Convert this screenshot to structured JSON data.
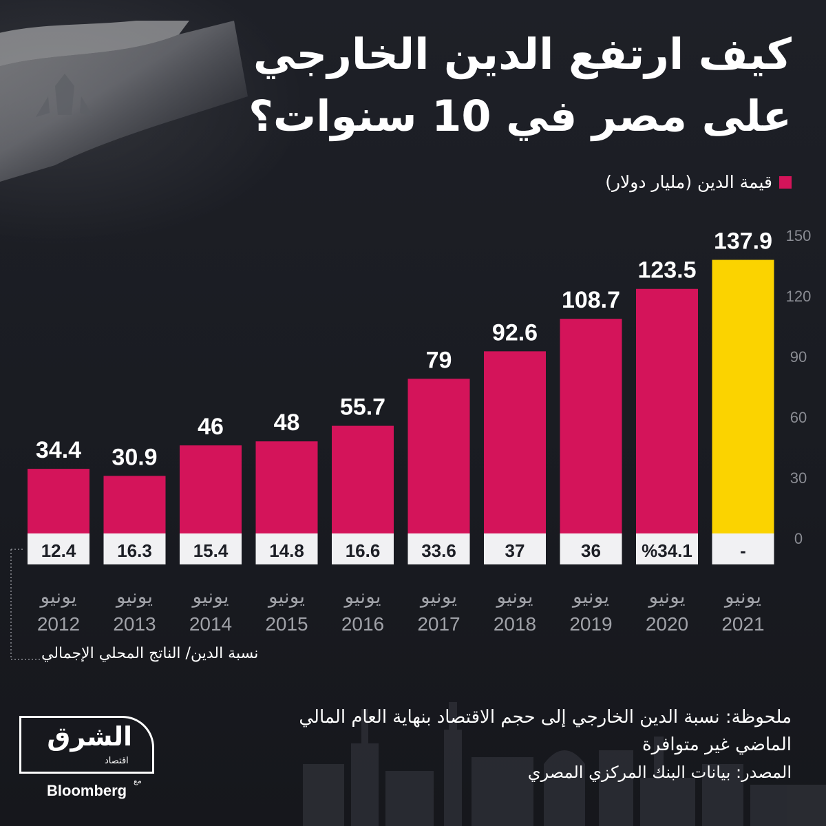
{
  "title_line1": "كيف ارتفع الدين الخارجي",
  "title_line2": "على مصر في 10 سنوات؟",
  "legend_label": "قيمة الدين (مليار دولار)",
  "ratio_caption": "نسبة الدين/ الناتج المحلي الإجمالي",
  "note_line1": "ملحوظة: نسبة الدين الخارجي إلى حجم الاقتصاد بنهاية العام المالي",
  "note_line2": "الماضي غير متوافرة",
  "source": "المصدر: بيانات البنك المركزي المصري",
  "logo": {
    "main": "الشرق",
    "sub": "اقتصاد",
    "with": "مع",
    "partner": "Bloomberg"
  },
  "colors": {
    "bar": "#d4145a",
    "highlight": "#fbd300",
    "background": "#1c1e25",
    "ratio_box": "#f1f1f3"
  },
  "chart_data": {
    "type": "bar",
    "categories": [
      [
        "يونيو",
        "2012"
      ],
      [
        "يونيو",
        "2013"
      ],
      [
        "يونيو",
        "2014"
      ],
      [
        "يونيو",
        "2015"
      ],
      [
        "يونيو",
        "2016"
      ],
      [
        "يونيو",
        "2017"
      ],
      [
        "يونيو",
        "2018"
      ],
      [
        "يونيو",
        "2019"
      ],
      [
        "يونيو",
        "2020"
      ],
      [
        "يونيو",
        "2021"
      ]
    ],
    "values": [
      34.4,
      30.9,
      46,
      48,
      55.7,
      79,
      92.6,
      108.7,
      123.5,
      137.9
    ],
    "value_labels": [
      "34.4",
      "30.9",
      "46",
      "48",
      "55.7",
      "79",
      "92.6",
      "108.7",
      "123.5",
      "137.9"
    ],
    "ratio_labels": [
      "12.4",
      "16.3",
      "15.4",
      "14.8",
      "16.6",
      "33.6",
      "37",
      "36",
      "%34.1",
      "-"
    ],
    "highlight_index": 9,
    "ylim": [
      0,
      150
    ],
    "yticks": [
      0,
      30,
      60,
      90,
      120,
      150
    ],
    "axis_side": "right",
    "grid": false
  }
}
